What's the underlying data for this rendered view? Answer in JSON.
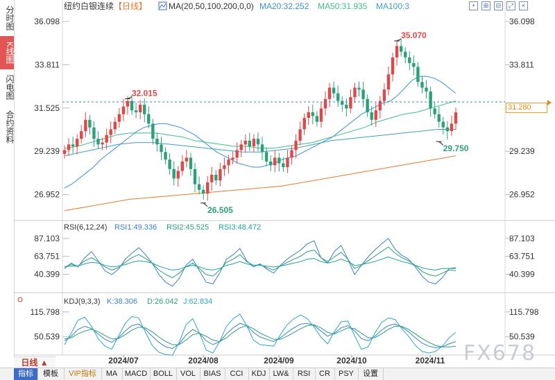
{
  "header": {
    "title": "纽约白银连续",
    "period_tag": "【日线】",
    "ma_label": "MA(20,50,100,200,0,0)",
    "ma_values": [
      {
        "name": "MA20:32.252",
        "color": "#3a8fd8"
      },
      {
        "name": "MA50:31.935",
        "color": "#3cbf8c"
      },
      {
        "name": "MA100:3",
        "color": "#3a9fc8"
      }
    ]
  },
  "side_tabs": [
    {
      "label": "分时图",
      "active": false
    },
    {
      "label": "K线图",
      "active": true
    },
    {
      "label": "闪电图",
      "active": false
    },
    {
      "label": "合约资料",
      "active": false
    }
  ],
  "tool_icons": [
    "crosshair-icon",
    "zoom-in-icon",
    "zoom-out-icon",
    "expand-icon",
    "close-icon"
  ],
  "current_price": "31.280",
  "bottom_tabs": [
    {
      "label": "指标",
      "active": true
    },
    {
      "label": "模板",
      "active": false
    },
    {
      "label": "VIP指标",
      "active": false,
      "vip": true
    },
    {
      "label": "MA"
    },
    {
      "label": "MACD"
    },
    {
      "label": "BOLL"
    },
    {
      "label": "VOL"
    },
    {
      "label": "BIAS"
    },
    {
      "label": "CCI"
    },
    {
      "label": "KDJ"
    },
    {
      "label": "LW&"
    },
    {
      "label": "RSI"
    },
    {
      "label": "CR"
    },
    {
      "label": "PSY"
    },
    {
      "label": "设置"
    }
  ],
  "period_button": "日线 ▲",
  "watermark": "FX678",
  "chart_data": {
    "type": "candlestick",
    "price_axis_ticks": [
      "36.098",
      "33.811",
      "31.525",
      "29.239",
      "26.952"
    ],
    "price_ylim": [
      25.8,
      36.5
    ],
    "x_tick_labels": [
      "2024/07",
      "2024/08",
      "2024/09",
      "2024/10",
      "2024/11"
    ],
    "annotations": [
      {
        "label": "32.015",
        "value": 32.015,
        "type": "high"
      },
      {
        "label": "26.505",
        "value": 26.505,
        "type": "low"
      },
      {
        "label": "35.070",
        "value": 35.07,
        "type": "high"
      },
      {
        "label": "29.750",
        "value": 29.75,
        "type": "low"
      }
    ],
    "closes": [
      29.3,
      29.6,
      29.5,
      29.9,
      30.3,
      30.9,
      30.5,
      29.9,
      29.6,
      29.7,
      30.1,
      30.4,
      30.8,
      31.2,
      31.6,
      31.9,
      31.4,
      31.3,
      31.7,
      31.2,
      30.7,
      29.9,
      29.6,
      29.2,
      28.8,
      28.3,
      27.8,
      28.2,
      28.7,
      28.9,
      28.3,
      27.5,
      27.2,
      27.0,
      27.6,
      28.0,
      27.7,
      28.3,
      28.5,
      28.8,
      28.9,
      29.3,
      29.6,
      29.8,
      29.5,
      29.9,
      29.6,
      29.2,
      28.7,
      28.5,
      28.9,
      28.6,
      28.4,
      28.9,
      29.3,
      29.8,
      30.4,
      31.0,
      31.3,
      31.1,
      30.8,
      31.5,
      32.0,
      32.6,
      32.3,
      31.9,
      31.7,
      31.5,
      32.1,
      32.6,
      32.5,
      32.0,
      31.3,
      30.9,
      31.4,
      31.9,
      32.5,
      33.3,
      34.2,
      34.8,
      34.5,
      34.2,
      33.9,
      33.7,
      32.9,
      32.6,
      32.4,
      31.5,
      31.2,
      30.8,
      30.5,
      30.3,
      30.7,
      31.3
    ],
    "moving_averages": [
      {
        "name": "MA20",
        "color": "#3a8fd8",
        "values": [
          27.3,
          27.5,
          27.8,
          28.1,
          28.4,
          28.8,
          29.1,
          29.4,
          29.7,
          30.0,
          30.3,
          30.5,
          30.6,
          30.7,
          30.7,
          30.6,
          30.5,
          30.3,
          30.1,
          29.8,
          29.5,
          29.2,
          29.0,
          28.8,
          28.6,
          28.5,
          28.4,
          28.4,
          28.5,
          28.6,
          28.8,
          28.9,
          29.0,
          29.2,
          29.4,
          29.6,
          29.8,
          30.0,
          30.3,
          30.6,
          30.9,
          31.2,
          31.4,
          31.6,
          31.8,
          31.9,
          32.2,
          32.6,
          33.0,
          33.2,
          33.2,
          33.1,
          32.9,
          32.6,
          32.3
        ]
      },
      {
        "name": "MA50",
        "color": "#3cbf8c",
        "values": [
          29.4,
          29.5,
          29.7,
          29.9,
          30.1,
          30.2,
          30.2,
          30.2,
          30.1,
          30.0,
          29.8,
          29.7,
          29.6,
          29.5,
          29.5,
          29.4,
          29.4,
          29.5,
          29.6,
          29.7,
          29.9,
          30.1,
          30.3,
          30.5,
          30.8,
          31.0,
          31.2,
          31.3,
          31.5,
          31.7,
          31.9
        ]
      },
      {
        "name": "MA100",
        "color": "#3a9fc8",
        "values": [
          29.0,
          29.2,
          29.4,
          29.6,
          29.7,
          29.7,
          29.6,
          29.5,
          29.4,
          29.3,
          29.2,
          29.2,
          29.3,
          29.4,
          29.6,
          29.8,
          29.9,
          30.0,
          30.1,
          30.2,
          30.3,
          30.4,
          30.4
        ]
      },
      {
        "name": "MA200",
        "color": "#e8782c",
        "values": [
          26.1,
          26.3,
          26.5,
          26.7,
          26.8,
          26.9,
          27.0,
          27.1,
          27.2,
          27.3,
          27.4,
          27.6,
          27.8,
          28.0,
          28.2,
          28.4,
          28.6,
          28.8,
          29.0
        ]
      }
    ],
    "rsi": {
      "label": "RSI(6,12,24)",
      "values_text": [
        "RSI1:49.336",
        "RSI2:45.525",
        "RSI3:48.472"
      ],
      "ticks": [
        "87.103",
        "63.751",
        "40.399"
      ],
      "ylim": [
        22,
        95
      ],
      "series": [
        {
          "name": "RSI1",
          "color": "#3a7fc8",
          "values": [
            48,
            55,
            50,
            62,
            70,
            58,
            45,
            40,
            47,
            60,
            68,
            75,
            66,
            55,
            40,
            30,
            25,
            35,
            52,
            60,
            45,
            30,
            28,
            42,
            60,
            66,
            74,
            58,
            50,
            54,
            47,
            42,
            52,
            60,
            66,
            72,
            80,
            84,
            62,
            55,
            70,
            78,
            60,
            40,
            52,
            63,
            72,
            80,
            87,
            73,
            65,
            60,
            50,
            38,
            30,
            28,
            36,
            48,
            49
          ]
        },
        {
          "name": "RSI2",
          "color": "#2a9f78",
          "values": [
            50,
            53,
            51,
            58,
            62,
            57,
            50,
            46,
            49,
            56,
            62,
            66,
            61,
            55,
            46,
            40,
            36,
            42,
            50,
            55,
            48,
            40,
            38,
            46,
            56,
            60,
            66,
            57,
            52,
            53,
            49,
            46,
            51,
            56,
            60,
            64,
            70,
            72,
            62,
            57,
            63,
            69,
            60,
            48,
            52,
            58,
            64,
            70,
            76,
            68,
            62,
            58,
            52,
            44,
            40,
            38,
            42,
            46,
            45
          ]
        },
        {
          "name": "RSI3",
          "color": "#22a0a0",
          "values": [
            50,
            51,
            51,
            54,
            56,
            55,
            52,
            50,
            51,
            53,
            56,
            58,
            57,
            55,
            51,
            48,
            46,
            47,
            50,
            52,
            50,
            47,
            46,
            48,
            52,
            54,
            57,
            54,
            52,
            52,
            51,
            50,
            51,
            53,
            55,
            57,
            60,
            61,
            57,
            55,
            57,
            60,
            57,
            52,
            53,
            55,
            57,
            60,
            63,
            60,
            57,
            55,
            52,
            49,
            47,
            46,
            48,
            48,
            48
          ]
        }
      ]
    },
    "kdj": {
      "label": "KDJ(9,3,3)",
      "values_text": [
        "K:38.306",
        "D:26.042",
        "J:62.834"
      ],
      "ticks": [
        "115.798",
        "50.539"
      ],
      "ylim": [
        10,
        130
      ],
      "series": [
        {
          "name": "K",
          "color": "#3a7fc8",
          "values": [
            40,
            52,
            70,
            78,
            72,
            58,
            44,
            36,
            48,
            66,
            80,
            84,
            70,
            52,
            36,
            24,
            20,
            32,
            55,
            70,
            60,
            40,
            30,
            38,
            58,
            74,
            86,
            80,
            62,
            50,
            44,
            38,
            48,
            62,
            74,
            84,
            86,
            80,
            66,
            52,
            60,
            74,
            80,
            66,
            46,
            40,
            52,
            68,
            80,
            84,
            76,
            64,
            48,
            34,
            26,
            22,
            24,
            32,
            38
          ]
        },
        {
          "name": "D",
          "color": "#2a9f78",
          "values": [
            45,
            48,
            58,
            66,
            70,
            64,
            54,
            45,
            46,
            56,
            68,
            76,
            74,
            64,
            50,
            38,
            30,
            30,
            42,
            56,
            60,
            52,
            42,
            38,
            48,
            62,
            74,
            80,
            72,
            60,
            52,
            44,
            44,
            52,
            62,
            72,
            80,
            82,
            74,
            62,
            58,
            66,
            74,
            72,
            60,
            48,
            48,
            58,
            70,
            78,
            78,
            70,
            58,
            46,
            36,
            28,
            24,
            24,
            26
          ]
        },
        {
          "name": "J",
          "color": "#2aa6c6",
          "values": [
            30,
            60,
            94,
            102,
            78,
            46,
            26,
            18,
            52,
            86,
            104,
            100,
            62,
            28,
            10,
            4,
            2,
            36,
            82,
            98,
            60,
            16,
            8,
            38,
            78,
            98,
            110,
            80,
            42,
            30,
            28,
            26,
            56,
            82,
            98,
            108,
            98,
            76,
            50,
            32,
            64,
            90,
            92,
            54,
            18,
            24,
            60,
            88,
            100,
            96,
            72,
            52,
            28,
            12,
            8,
            12,
            26,
            48,
            62
          ]
        }
      ]
    }
  }
}
